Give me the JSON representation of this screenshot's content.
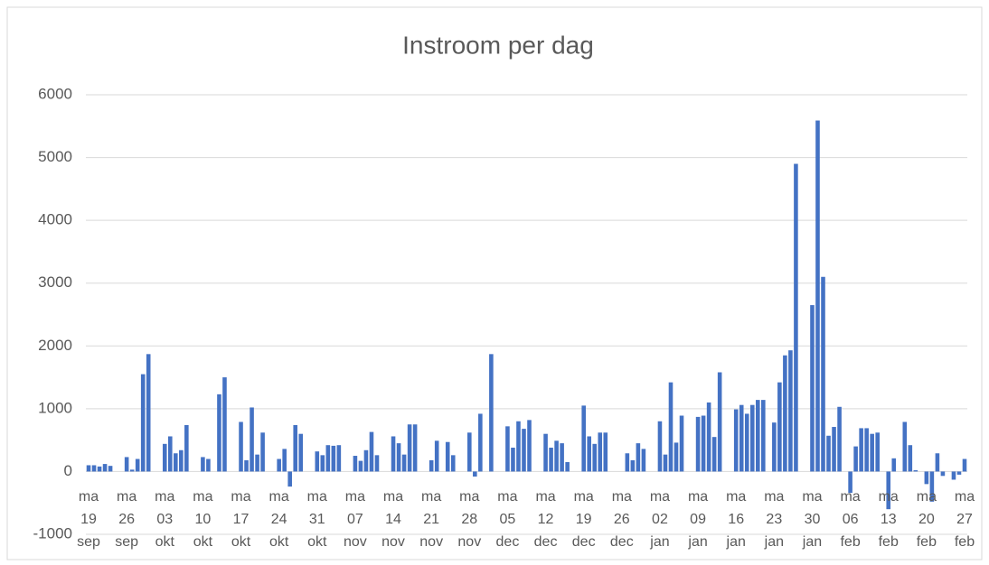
{
  "chart_data": {
    "type": "bar",
    "title": "Instroom per dag",
    "color": "#4472c4",
    "categories": [
      "ma 19 sep",
      null,
      null,
      null,
      null,
      null,
      null,
      "ma 26 sep",
      null,
      null,
      null,
      null,
      null,
      null,
      "ma 03 okt",
      null,
      null,
      null,
      null,
      null,
      null,
      "ma 10 okt",
      null,
      null,
      null,
      null,
      null,
      null,
      "ma 17 okt",
      null,
      null,
      null,
      null,
      null,
      null,
      "ma 24 okt",
      null,
      null,
      null,
      null,
      null,
      null,
      "ma 31 okt",
      null,
      null,
      null,
      null,
      null,
      null,
      "ma 07 nov",
      null,
      null,
      null,
      null,
      null,
      null,
      "ma 14 nov",
      null,
      null,
      null,
      null,
      null,
      null,
      "ma 21 nov",
      null,
      null,
      null,
      null,
      null,
      null,
      "ma 28 nov",
      null,
      null,
      null,
      null,
      null,
      null,
      "ma 05 dec",
      null,
      null,
      null,
      null,
      null,
      null,
      "ma 12 dec",
      null,
      null,
      null,
      null,
      null,
      null,
      "ma 19 dec",
      null,
      null,
      null,
      null,
      null,
      null,
      "ma 26 dec",
      null,
      null,
      null,
      null,
      null,
      null,
      "ma 02 jan",
      null,
      null,
      null,
      null,
      null,
      null,
      "ma 09 jan",
      null,
      null,
      null,
      null,
      null,
      null,
      "ma 16 jan",
      null,
      null,
      null,
      null,
      null,
      null,
      "ma 23 jan",
      null,
      null,
      null,
      null,
      null,
      null,
      "ma 30 jan",
      null,
      null,
      null,
      null,
      null,
      null,
      "ma 06 feb",
      null,
      null,
      null,
      null,
      null,
      null,
      "ma 13 feb",
      null,
      null,
      null,
      null,
      null,
      null,
      "ma 20 feb",
      null,
      null,
      null,
      null,
      null,
      null,
      "ma 27 feb"
    ],
    "values": [
      100,
      100,
      80,
      120,
      90,
      0,
      0,
      230,
      30,
      200,
      1550,
      1870,
      0,
      0,
      440,
      560,
      290,
      340,
      740,
      0,
      0,
      230,
      200,
      0,
      1230,
      1500,
      0,
      0,
      790,
      180,
      1020,
      270,
      620,
      0,
      0,
      200,
      360,
      -240,
      740,
      600,
      0,
      0,
      320,
      260,
      420,
      410,
      420,
      0,
      0,
      250,
      170,
      340,
      630,
      260,
      0,
      0,
      560,
      450,
      270,
      750,
      750,
      0,
      0,
      180,
      490,
      0,
      470,
      260,
      0,
      0,
      620,
      -80,
      920,
      0,
      1870,
      0,
      0,
      720,
      380,
      800,
      680,
      820,
      0,
      0,
      600,
      380,
      490,
      450,
      150,
      0,
      0,
      1050,
      560,
      440,
      620,
      620,
      0,
      0,
      0,
      290,
      180,
      450,
      360,
      0,
      0,
      800,
      270,
      1420,
      460,
      890,
      0,
      0,
      870,
      890,
      1100,
      550,
      1580,
      0,
      0,
      990,
      1060,
      920,
      1060,
      1140,
      1140,
      0,
      780,
      1420,
      1850,
      1930,
      4900,
      0,
      0,
      2650,
      5590,
      3100,
      570,
      710,
      1030,
      0,
      -340,
      400,
      690,
      690,
      600,
      620,
      0,
      -600,
      210,
      0,
      790,
      420,
      20,
      0,
      -200,
      -480,
      290,
      -70,
      0,
      -130,
      -50,
      200
    ],
    "ylim": [
      -1000,
      6000
    ],
    "yticks": [
      -1000,
      0,
      1000,
      2000,
      3000,
      4000,
      5000,
      6000
    ],
    "grid": true
  }
}
